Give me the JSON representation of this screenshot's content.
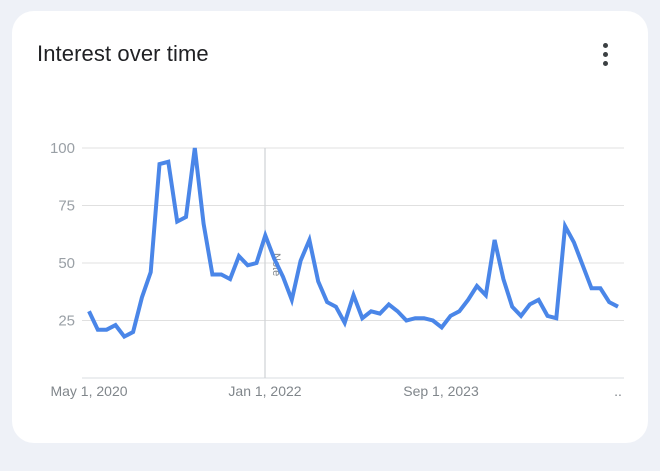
{
  "card": {
    "title": "Interest over time",
    "menu_icon": "more-vert-icon"
  },
  "chart_data": {
    "type": "line",
    "title": "Interest over time",
    "xlabel": "",
    "ylabel": "",
    "ylim": [
      0,
      100
    ],
    "yticks": [
      "100",
      "75",
      "50",
      "25"
    ],
    "yticks_values": [
      100,
      75,
      50,
      25
    ],
    "x_tick_labels": [
      "May 1, 2020",
      "Jan 1, 2022",
      "Sep 1, 2023",
      ".."
    ],
    "annotations": [
      {
        "text": "Note",
        "at": "Jan 1, 2022"
      }
    ],
    "grid": true,
    "line_color": "#4a86e8",
    "series": [
      {
        "values": [
          29,
          21,
          21,
          23,
          18,
          20,
          35,
          46,
          93,
          94,
          68,
          70,
          100,
          67,
          45,
          45,
          43,
          53,
          49,
          50,
          62,
          52,
          44,
          34,
          51,
          60,
          42,
          33,
          31,
          24,
          36,
          26,
          29,
          28,
          32,
          29,
          25,
          26,
          26,
          25,
          22,
          27,
          29,
          34,
          40,
          36,
          60,
          43,
          31,
          27,
          32,
          34,
          27,
          26,
          66,
          59,
          49,
          39,
          39,
          33,
          31
        ]
      }
    ]
  }
}
